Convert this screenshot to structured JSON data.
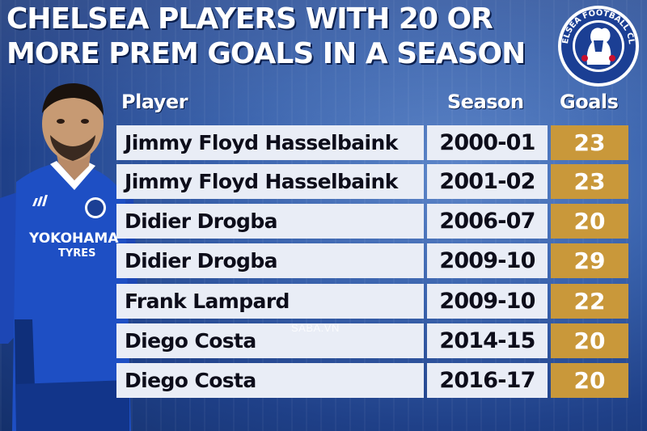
{
  "title": {
    "line1": "CHELSEA PLAYERS WITH 20 OR",
    "line2": "MORE PREM GOALS IN A SEASON"
  },
  "crest": {
    "text": "CHELSEA FOOTBALL CLUB",
    "icon": "chelsea-lion-crest"
  },
  "headers": {
    "player": "Player",
    "season": "Season",
    "goals": "Goals"
  },
  "rows": [
    {
      "player": "Jimmy Floyd Hasselbaink",
      "season": "2000-01",
      "goals": "23"
    },
    {
      "player": "Jimmy Floyd Hasselbaink",
      "season": "2001-02",
      "goals": "23"
    },
    {
      "player": "Didier Drogba",
      "season": "2006-07",
      "goals": "20"
    },
    {
      "player": "Didier Drogba",
      "season": "2009-10",
      "goals": "29"
    },
    {
      "player": "Frank Lampard",
      "season": "2009-10",
      "goals": "22"
    },
    {
      "player": "Diego Costa",
      "season": "2014-15",
      "goals": "20"
    },
    {
      "player": "Diego Costa",
      "season": "2016-17",
      "goals": "20"
    }
  ],
  "player_shirt": {
    "sponsor": "YOKOHAMA",
    "sponsor_sub": "TYRES"
  },
  "watermark": "SABA.VN",
  "colors": {
    "background": "#2f56a3",
    "row": "#e9edf6",
    "goals": "#c9983a",
    "text": "#0d0d1a"
  }
}
